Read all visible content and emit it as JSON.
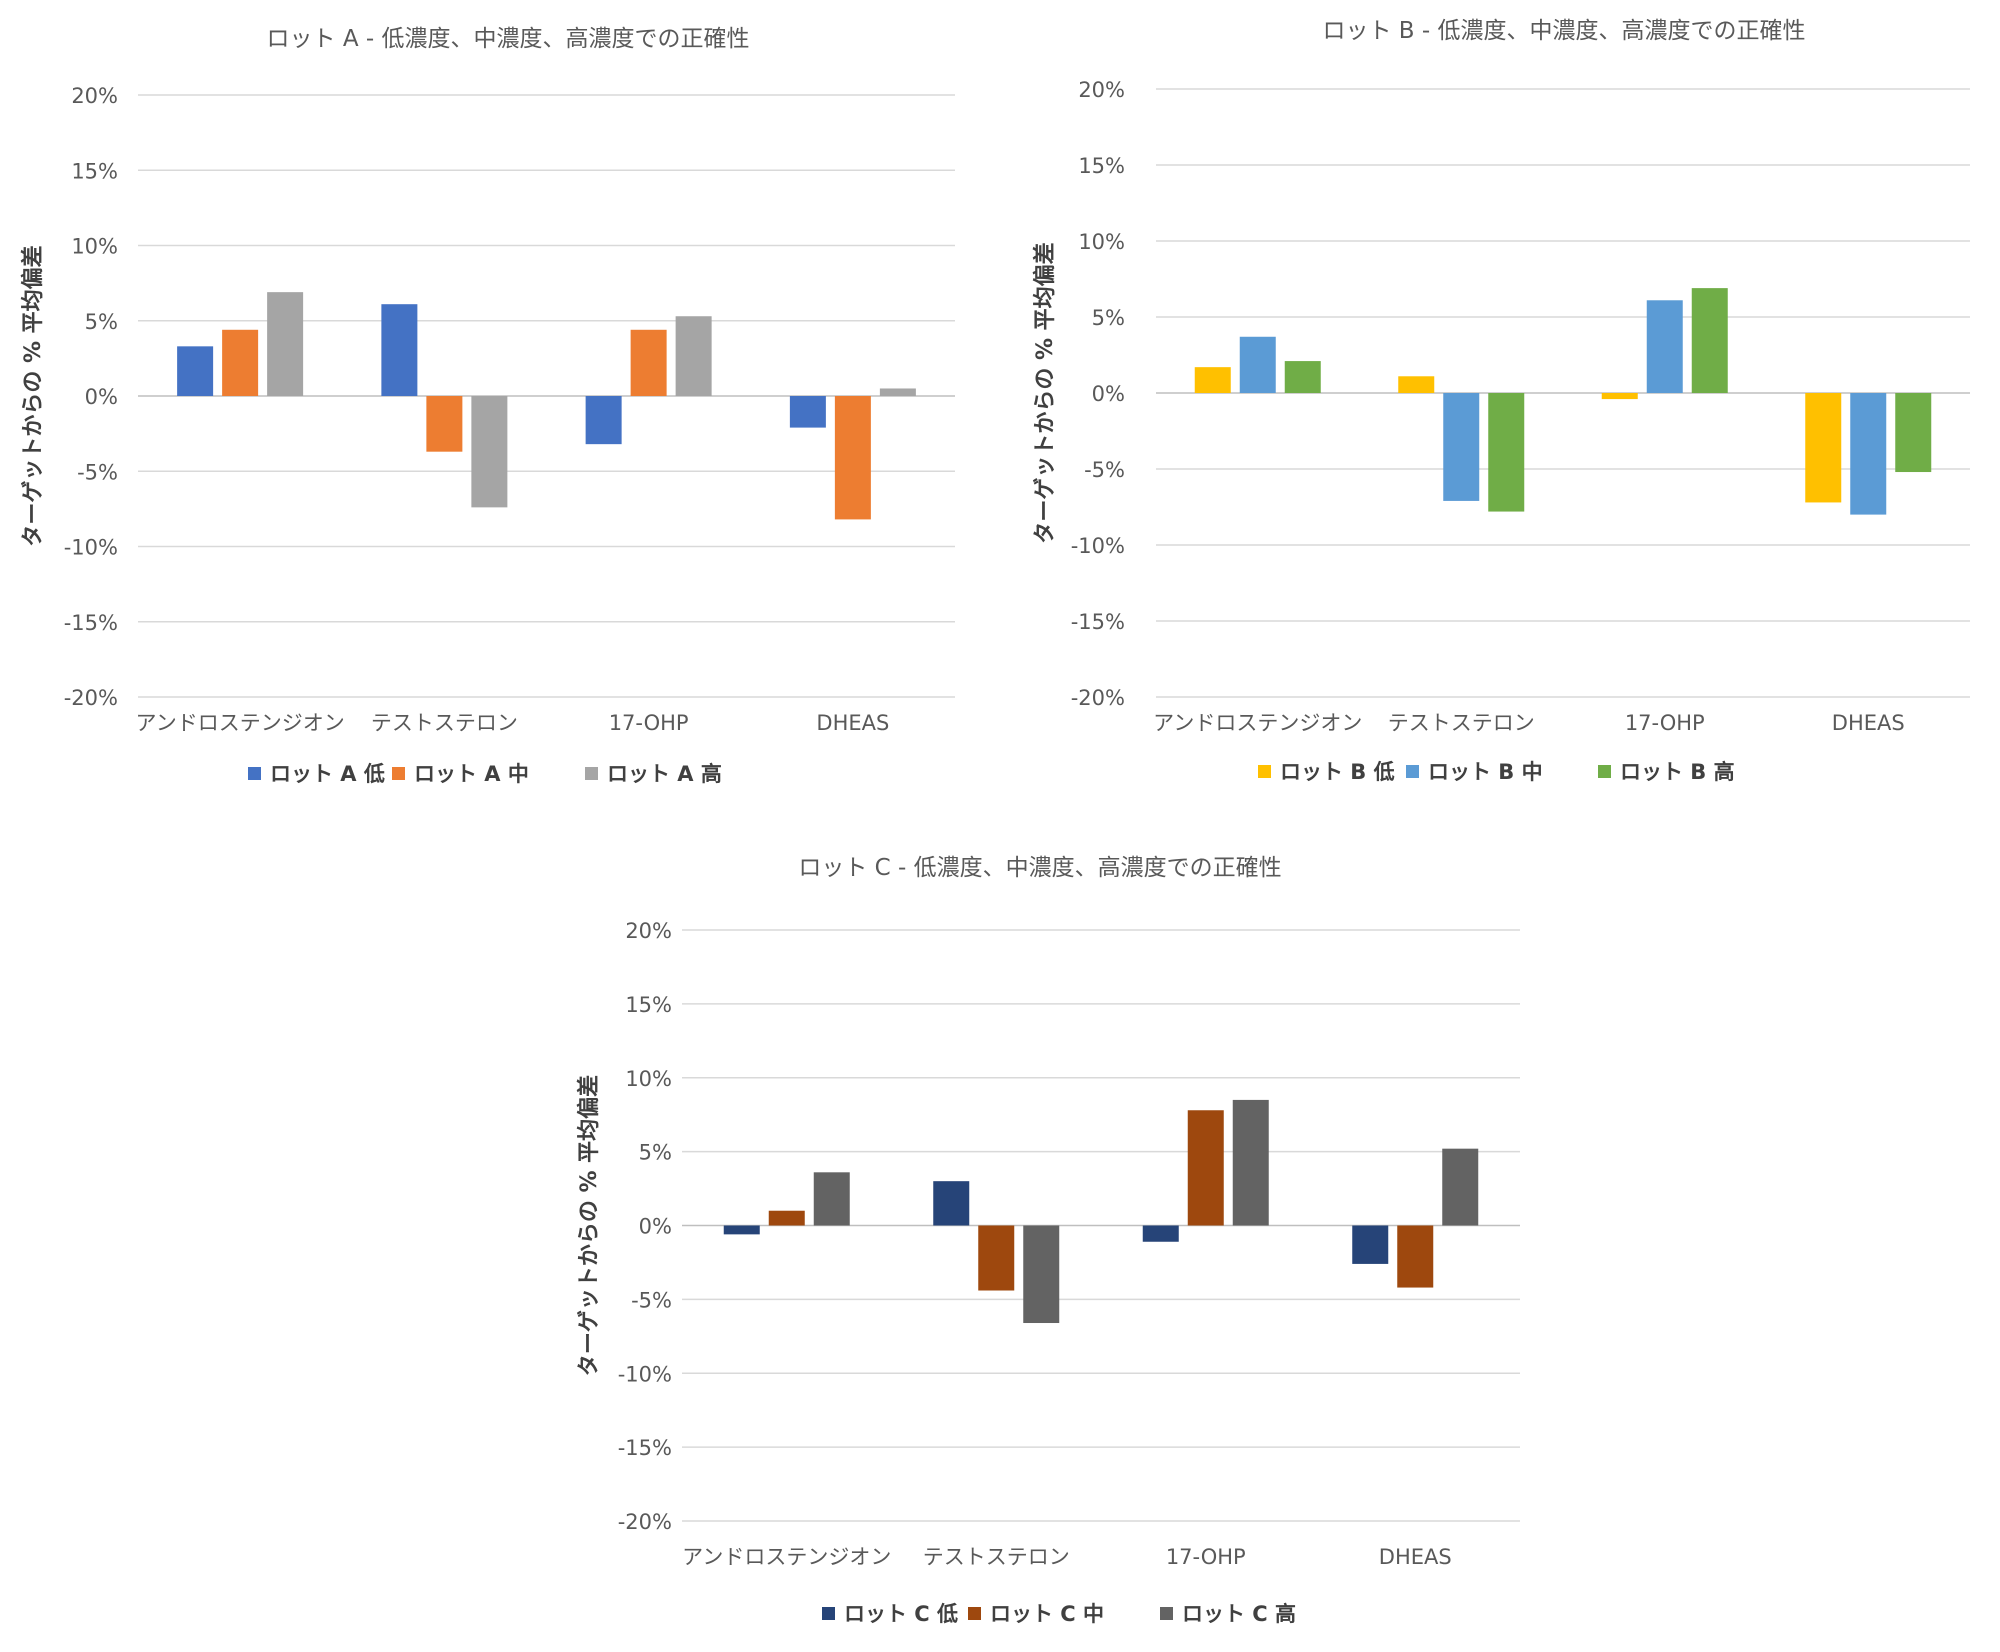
{
  "chart_data": [
    {
      "type": "bar",
      "title": "ロット A - 低濃度、中濃度、高濃度での正確性",
      "xlabel": "",
      "ylabel": "ターゲットからの % 平均偏差",
      "ylim": [
        -20,
        20
      ],
      "yticks": [
        "20%",
        "15%",
        "10%",
        "5%",
        "0%",
        "-5%",
        "-10%",
        "-15%",
        "-20%"
      ],
      "ytick_values": [
        20,
        15,
        10,
        5,
        0,
        -5,
        -10,
        -15,
        -20
      ],
      "categories": [
        "アンドロステンジオン",
        "テストステロン",
        "17-OHP",
        "DHEAS"
      ],
      "legend_position": "bottom",
      "series": [
        {
          "name": "ロット A 低",
          "color": "#4472C4",
          "values": [
            3.3,
            6.1,
            -3.2,
            -2.1
          ]
        },
        {
          "name": "ロット A 中",
          "color": "#ED7D31",
          "values": [
            4.4,
            -3.7,
            4.4,
            -8.2
          ]
        },
        {
          "name": "ロット A 高",
          "color": "#A5A5A5",
          "values": [
            6.9,
            -7.4,
            5.3,
            0.5
          ]
        }
      ]
    },
    {
      "type": "bar",
      "title": "ロット B - 低濃度、中濃度、高濃度での正確性",
      "xlabel": "",
      "ylabel": "ターゲットからの % 平均偏差",
      "ylim": [
        -20,
        20
      ],
      "yticks": [
        "20%",
        "15%",
        "10%",
        "5%",
        "0%",
        "-5%",
        "-10%",
        "-15%",
        "-20%"
      ],
      "ytick_values": [
        20,
        15,
        10,
        5,
        0,
        -5,
        -10,
        -15,
        -20
      ],
      "categories": [
        "アンドロステンジオン",
        "テストステロン",
        "17-OHP",
        "DHEAS"
      ],
      "legend_position": "bottom",
      "series": [
        {
          "name": "ロット B 低",
          "color": "#FFC000",
          "values": [
            1.7,
            1.1,
            -0.4,
            -7.2
          ]
        },
        {
          "name": "ロット B 中",
          "color": "#5B9BD5",
          "values": [
            3.7,
            -7.1,
            6.1,
            -8.0
          ]
        },
        {
          "name": "ロット B 高",
          "color": "#70AD47",
          "values": [
            2.1,
            -7.8,
            6.9,
            -5.2
          ]
        }
      ]
    },
    {
      "type": "bar",
      "title": "ロット C - 低濃度、中濃度、高濃度での正確性",
      "xlabel": "",
      "ylabel": "ターゲットからの % 平均偏差",
      "ylim": [
        -20,
        20
      ],
      "yticks": [
        "20%",
        "15%",
        "10%",
        "5%",
        "0%",
        "-5%",
        "-10%",
        "-15%",
        "-20%"
      ],
      "ytick_values": [
        20,
        15,
        10,
        5,
        0,
        -5,
        -10,
        -15,
        -20
      ],
      "categories": [
        "アンドロステンジオン",
        "テストステロン",
        "17-OHP",
        "DHEAS"
      ],
      "legend_position": "bottom",
      "series": [
        {
          "name": "ロット C 低",
          "color": "#264478",
          "values": [
            -0.6,
            3.0,
            -1.1,
            -2.6
          ]
        },
        {
          "name": "ロット C 中",
          "color": "#9E480E",
          "values": [
            1.0,
            -4.4,
            7.8,
            -4.2
          ]
        },
        {
          "name": "ロット C 高",
          "color": "#636363",
          "values": [
            3.6,
            -6.6,
            8.5,
            5.2
          ]
        }
      ]
    }
  ]
}
